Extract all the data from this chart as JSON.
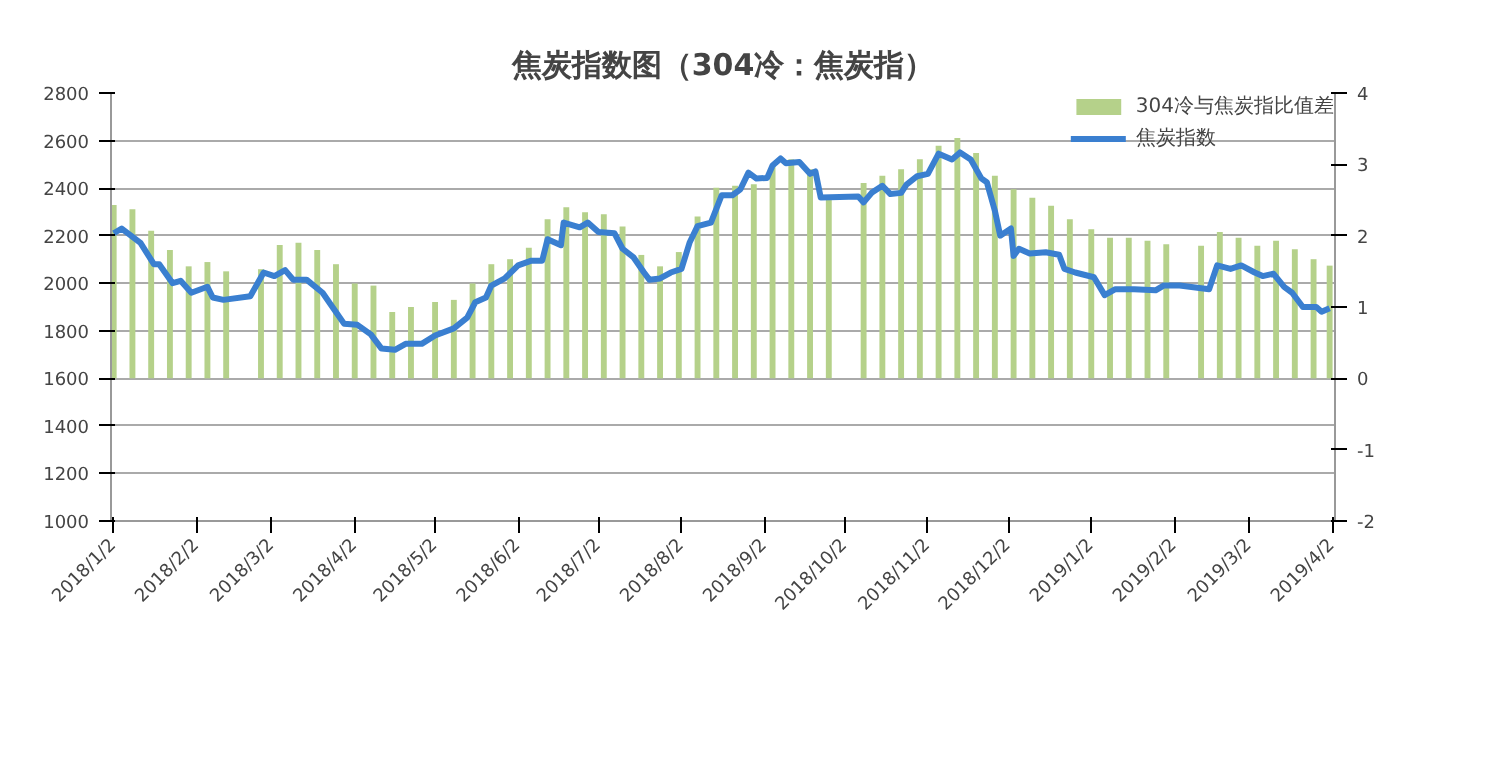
{
  "chart_data": {
    "type": "bar",
    "title": "焦炭指数图（304冷：焦炭指）",
    "xlim": [
      "2018-01-01",
      "2019-04-03"
    ],
    "xticks": [
      {
        "value": "2018-01-02",
        "label": "2018/1/2"
      },
      {
        "value": "2018-02-02",
        "label": "2018/2/2"
      },
      {
        "value": "2018-03-02",
        "label": "2018/3/2"
      },
      {
        "value": "2018-04-02",
        "label": "2018/4/2"
      },
      {
        "value": "2018-05-02",
        "label": "2018/5/2"
      },
      {
        "value": "2018-06-02",
        "label": "2018/6/2"
      },
      {
        "value": "2018-07-02",
        "label": "2018/7/2"
      },
      {
        "value": "2018-08-02",
        "label": "2018/8/2"
      },
      {
        "value": "2018-09-02",
        "label": "2018/9/2"
      },
      {
        "value": "2018-10-02",
        "label": "2018/10/2"
      },
      {
        "value": "2018-11-02",
        "label": "2018/11/2"
      },
      {
        "value": "2018-12-02",
        "label": "2018/12/2"
      },
      {
        "value": "2019-01-02",
        "label": "2019/1/2"
      },
      {
        "value": "2019-02-02",
        "label": "2019/2/2"
      },
      {
        "value": "2019-03-02",
        "label": "2019/3/2"
      },
      {
        "value": "2019-04-02",
        "label": "2019/4/2"
      }
    ],
    "ylim": [
      1000,
      2800
    ],
    "yticks": [
      1000,
      1200,
      1400,
      1600,
      1800,
      2000,
      2200,
      2400,
      2600,
      2800
    ],
    "y2lim": [
      -2,
      4
    ],
    "y2ticks": [
      -2,
      -1,
      0,
      1,
      2,
      3,
      4
    ],
    "grid": "y",
    "legend": "top right",
    "series": [
      {
        "name": "304冷与焦炭指比值差",
        "axis": "y2",
        "color": "#b5d18a",
        "x": [
          "2018-01-02",
          "2018-01-09",
          "2018-01-16",
          "2018-01-23",
          "2018-01-30",
          "2018-02-06",
          "2018-02-13",
          "2018-02-26",
          "2018-03-05",
          "2018-03-12",
          "2018-03-19",
          "2018-03-26",
          "2018-04-02",
          "2018-04-09",
          "2018-04-16",
          "2018-04-23",
          "2018-05-02",
          "2018-05-09",
          "2018-05-16",
          "2018-05-23",
          "2018-05-30",
          "2018-06-06",
          "2018-06-13",
          "2018-06-20",
          "2018-06-27",
          "2018-07-04",
          "2018-07-11",
          "2018-07-18",
          "2018-07-25",
          "2018-08-01",
          "2018-08-08",
          "2018-08-15",
          "2018-08-22",
          "2018-08-29",
          "2018-09-05",
          "2018-09-12",
          "2018-09-19",
          "2018-09-26",
          "2018-10-09",
          "2018-10-16",
          "2018-10-23",
          "2018-10-30",
          "2018-11-06",
          "2018-11-13",
          "2018-11-20",
          "2018-11-27",
          "2018-12-04",
          "2018-12-11",
          "2018-12-18",
          "2018-12-25",
          "2019-01-02",
          "2019-01-09",
          "2019-01-16",
          "2019-01-23",
          "2019-01-30",
          "2019-02-12",
          "2019-02-19",
          "2019-02-26",
          "2019-03-05",
          "2019-03-12",
          "2019-03-19",
          "2019-03-26",
          "2019-04-01"
        ],
        "values": [
          2.43,
          2.37,
          2.07,
          1.8,
          1.57,
          1.63,
          1.5,
          1.53,
          1.87,
          1.9,
          1.8,
          1.6,
          1.33,
          1.3,
          0.93,
          1.0,
          1.07,
          1.1,
          1.33,
          1.6,
          1.67,
          1.83,
          2.23,
          2.4,
          2.33,
          2.3,
          2.13,
          1.73,
          1.57,
          1.77,
          2.27,
          2.67,
          2.7,
          2.72,
          2.98,
          3.07,
          2.93,
          2.5,
          2.74,
          2.84,
          2.93,
          3.07,
          3.26,
          3.37,
          3.16,
          2.84,
          2.65,
          2.53,
          2.42,
          2.23,
          2.09,
          1.97,
          1.97,
          1.93,
          1.88,
          1.86,
          2.05,
          1.97,
          1.86,
          1.93,
          1.81,
          1.67,
          1.58
        ]
      },
      {
        "name": "焦炭指数",
        "type": "line",
        "color": "#3a7fd0",
        "x": [
          "2018-01-02",
          "2018-01-05",
          "2018-01-12",
          "2018-01-17",
          "2018-01-19",
          "2018-01-24",
          "2018-01-27",
          "2018-01-31",
          "2018-02-06",
          "2018-02-08",
          "2018-02-12",
          "2018-02-22",
          "2018-02-27",
          "2018-03-03",
          "2018-03-07",
          "2018-03-10",
          "2018-03-15",
          "2018-03-21",
          "2018-03-25",
          "2018-03-29",
          "2018-04-03",
          "2018-04-08",
          "2018-04-12",
          "2018-04-17",
          "2018-04-21",
          "2018-04-27",
          "2018-05-02",
          "2018-05-09",
          "2018-05-14",
          "2018-05-17",
          "2018-05-21",
          "2018-05-23",
          "2018-05-28",
          "2018-06-02",
          "2018-06-07",
          "2018-06-11",
          "2018-06-13",
          "2018-06-18",
          "2018-06-19",
          "2018-06-25",
          "2018-06-28",
          "2018-07-02",
          "2018-07-08",
          "2018-07-11",
          "2018-07-15",
          "2018-07-19",
          "2018-07-21",
          "2018-07-25",
          "2018-07-29",
          "2018-08-02",
          "2018-08-05",
          "2018-08-08",
          "2018-08-13",
          "2018-08-17",
          "2018-08-21",
          "2018-08-24",
          "2018-08-27",
          "2018-08-30",
          "2018-09-03",
          "2018-09-05",
          "2018-09-08",
          "2018-09-10",
          "2018-09-15",
          "2018-09-19",
          "2018-09-21",
          "2018-09-23",
          "2018-10-07",
          "2018-10-09",
          "2018-10-12",
          "2018-10-16",
          "2018-10-19",
          "2018-10-23",
          "2018-10-25",
          "2018-10-29",
          "2018-11-02",
          "2018-11-06",
          "2018-11-11",
          "2018-11-14",
          "2018-11-18",
          "2018-11-22",
          "2018-11-24",
          "2018-11-27",
          "2018-11-29",
          "2018-12-03",
          "2018-12-04",
          "2018-12-06",
          "2018-12-10",
          "2018-12-16",
          "2018-12-21",
          "2018-12-23",
          "2018-12-27",
          "2019-01-03",
          "2019-01-07",
          "2019-01-11",
          "2019-01-18",
          "2019-01-26",
          "2019-01-29",
          "2019-02-04",
          "2019-02-15",
          "2019-02-18",
          "2019-02-23",
          "2019-02-27",
          "2019-03-04",
          "2019-03-07",
          "2019-03-11",
          "2019-03-15",
          "2019-03-18",
          "2019-03-22",
          "2019-03-27",
          "2019-03-29",
          "2019-04-01"
        ],
        "values": [
          2210,
          2230,
          2170,
          2080,
          2080,
          2000,
          2010,
          1960,
          1985,
          1940,
          1930,
          1945,
          2045,
          2030,
          2055,
          2015,
          2015,
          1960,
          1895,
          1830,
          1825,
          1785,
          1725,
          1720,
          1745,
          1745,
          1780,
          1810,
          1855,
          1920,
          1940,
          1990,
          2020,
          2075,
          2095,
          2095,
          2185,
          2160,
          2255,
          2235,
          2255,
          2215,
          2210,
          2145,
          2110,
          2045,
          2015,
          2020,
          2045,
          2060,
          2170,
          2240,
          2255,
          2370,
          2370,
          2395,
          2465,
          2440,
          2443,
          2495,
          2525,
          2505,
          2510,
          2460,
          2470,
          2360,
          2365,
          2340,
          2380,
          2410,
          2375,
          2380,
          2415,
          2450,
          2460,
          2545,
          2520,
          2550,
          2520,
          2440,
          2425,
          2305,
          2200,
          2230,
          2115,
          2145,
          2125,
          2130,
          2120,
          2060,
          2045,
          2025,
          1950,
          1975,
          1975,
          1970,
          1990,
          1990,
          1975,
          2075,
          2060,
          2075,
          2045,
          2030,
          2040,
          1985,
          1960,
          1900,
          1900,
          1880,
          1895
        ]
      }
    ]
  }
}
